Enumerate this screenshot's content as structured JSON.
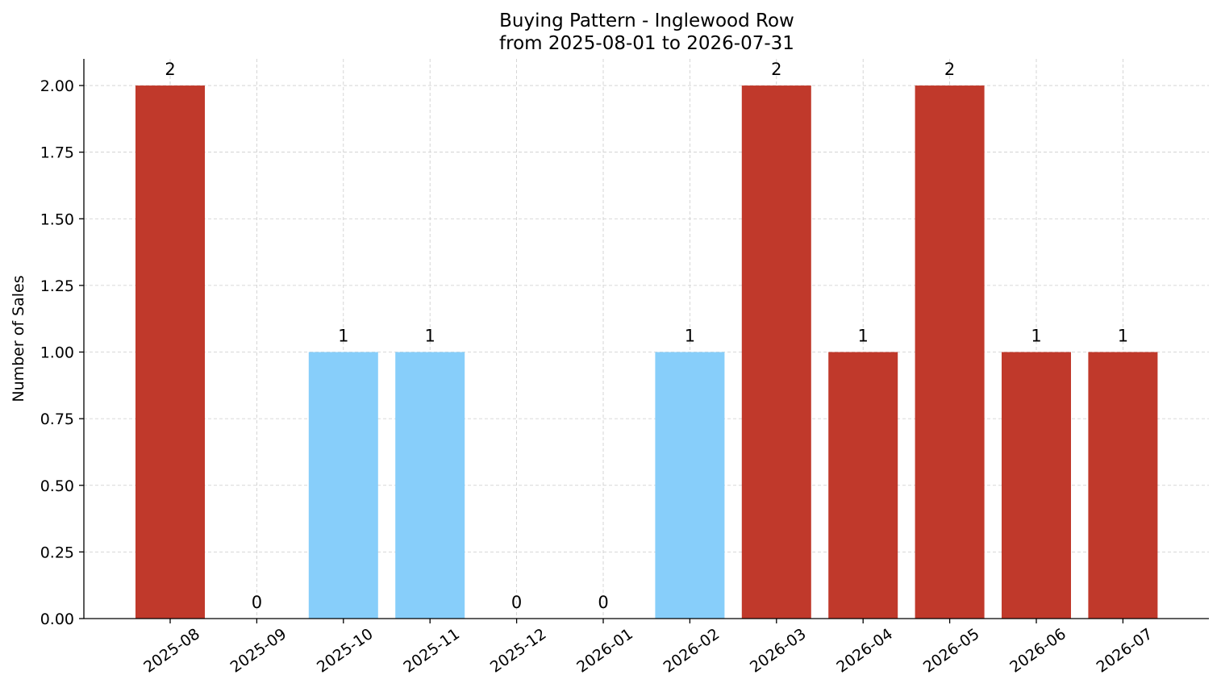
{
  "chart_data": {
    "type": "bar",
    "title": "Buying Pattern - Inglewood Row",
    "subtitle": "from 2025-08-01 to 2026-07-31",
    "xlabel": "",
    "ylabel": "Number of Sales",
    "categories": [
      "2025-08",
      "2025-09",
      "2025-10",
      "2025-11",
      "2025-12",
      "2026-01",
      "2026-02",
      "2026-03",
      "2026-04",
      "2026-05",
      "2026-06",
      "2026-07"
    ],
    "values": [
      2,
      0,
      1,
      1,
      0,
      0,
      1,
      2,
      1,
      2,
      1,
      1
    ],
    "data_labels": [
      "2",
      "0",
      "1",
      "1",
      "0",
      "0",
      "1",
      "2",
      "1",
      "2",
      "1",
      "1"
    ],
    "bar_colors": [
      "#c0392b",
      "#c0392b",
      "#87cefa",
      "#87cefa",
      "#c0392b",
      "#c0392b",
      "#87cefa",
      "#c0392b",
      "#c0392b",
      "#c0392b",
      "#c0392b",
      "#c0392b"
    ],
    "ylim": [
      0,
      2.1
    ],
    "yticks": [
      0,
      0.25,
      0.5,
      0.75,
      1.0,
      1.25,
      1.5,
      1.75,
      2.0
    ],
    "ytick_labels": [
      "0.00",
      "0.25",
      "0.50",
      "0.75",
      "1.00",
      "1.25",
      "1.50",
      "1.75",
      "2.00"
    ],
    "grid": true,
    "legend": "none"
  }
}
